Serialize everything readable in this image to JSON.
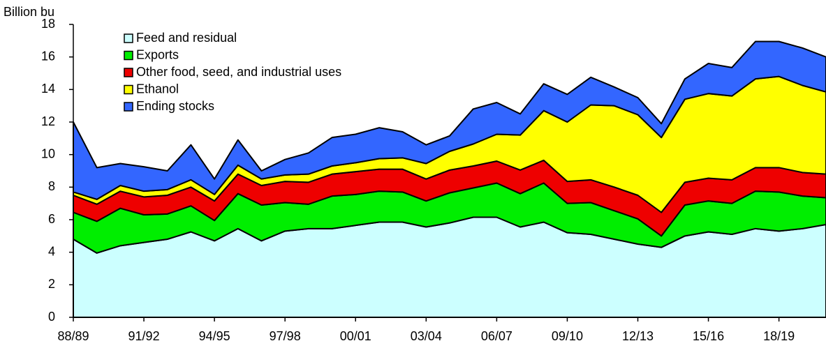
{
  "chart_data": {
    "type": "stacked-area",
    "y_label": "Billion bu",
    "categories": [
      "88/89",
      null,
      null,
      "91/92",
      null,
      null,
      "94/95",
      null,
      null,
      "97/98",
      null,
      null,
      "00/01",
      null,
      null,
      "03/04",
      null,
      null,
      "06/07",
      null,
      null,
      "09/10",
      null,
      null,
      "12/13",
      null,
      null,
      "15/16",
      null,
      null,
      "18/19",
      null,
      null
    ],
    "ylim": [
      0,
      18
    ],
    "yticks": [
      0,
      2,
      4,
      6,
      8,
      10,
      12,
      14,
      16,
      18
    ],
    "series": [
      {
        "name": "Feed and residual",
        "color": "#ccffff",
        "values": [
          4.8,
          3.95,
          4.4,
          4.6,
          4.8,
          5.25,
          4.7,
          5.45,
          4.7,
          5.3,
          5.45,
          5.45,
          5.65,
          5.85,
          5.85,
          5.55,
          5.8,
          6.15,
          6.15,
          5.55,
          5.85,
          5.2,
          5.1,
          4.8,
          4.5,
          4.3,
          5.0,
          5.25,
          5.1,
          5.45,
          5.3,
          5.45,
          5.7
        ]
      },
      {
        "name": "Exports",
        "color": "#00ee00",
        "values": [
          1.65,
          1.95,
          2.3,
          1.7,
          1.55,
          1.6,
          1.25,
          2.15,
          2.2,
          1.75,
          1.5,
          2.0,
          1.9,
          1.9,
          1.85,
          1.6,
          1.85,
          1.8,
          2.1,
          2.05,
          2.4,
          1.8,
          1.95,
          1.75,
          1.55,
          0.7,
          1.9,
          1.9,
          1.9,
          2.3,
          2.4,
          2.0,
          1.65
        ]
      },
      {
        "name": "Other food, seed, and industrial uses",
        "color": "#ee0000",
        "values": [
          1.05,
          1.05,
          1.05,
          1.1,
          1.15,
          1.15,
          1.2,
          1.2,
          1.2,
          1.3,
          1.35,
          1.35,
          1.4,
          1.35,
          1.4,
          1.35,
          1.4,
          1.35,
          1.35,
          1.45,
          1.4,
          1.35,
          1.4,
          1.45,
          1.45,
          1.45,
          1.4,
          1.4,
          1.45,
          1.45,
          1.5,
          1.45,
          1.45
        ]
      },
      {
        "name": "Ethanol",
        "color": "#ffff00",
        "values": [
          0.2,
          0.3,
          0.35,
          0.35,
          0.35,
          0.45,
          0.4,
          0.55,
          0.4,
          0.4,
          0.5,
          0.5,
          0.55,
          0.65,
          0.7,
          0.95,
          1.15,
          1.35,
          1.65,
          2.15,
          3.05,
          3.65,
          4.6,
          5.0,
          4.95,
          4.6,
          5.1,
          5.2,
          5.15,
          5.45,
          5.6,
          5.35,
          5.05
        ]
      },
      {
        "name": "Ending stocks",
        "color": "#3366ff",
        "values": [
          4.3,
          1.95,
          1.35,
          1.5,
          1.15,
          2.15,
          0.95,
          1.55,
          0.5,
          0.95,
          1.3,
          1.75,
          1.75,
          1.9,
          1.6,
          1.15,
          0.95,
          2.15,
          1.95,
          1.3,
          1.65,
          1.7,
          1.7,
          1.15,
          1.05,
          0.85,
          1.25,
          1.85,
          1.75,
          2.3,
          2.15,
          2.3,
          2.15
        ]
      }
    ]
  }
}
